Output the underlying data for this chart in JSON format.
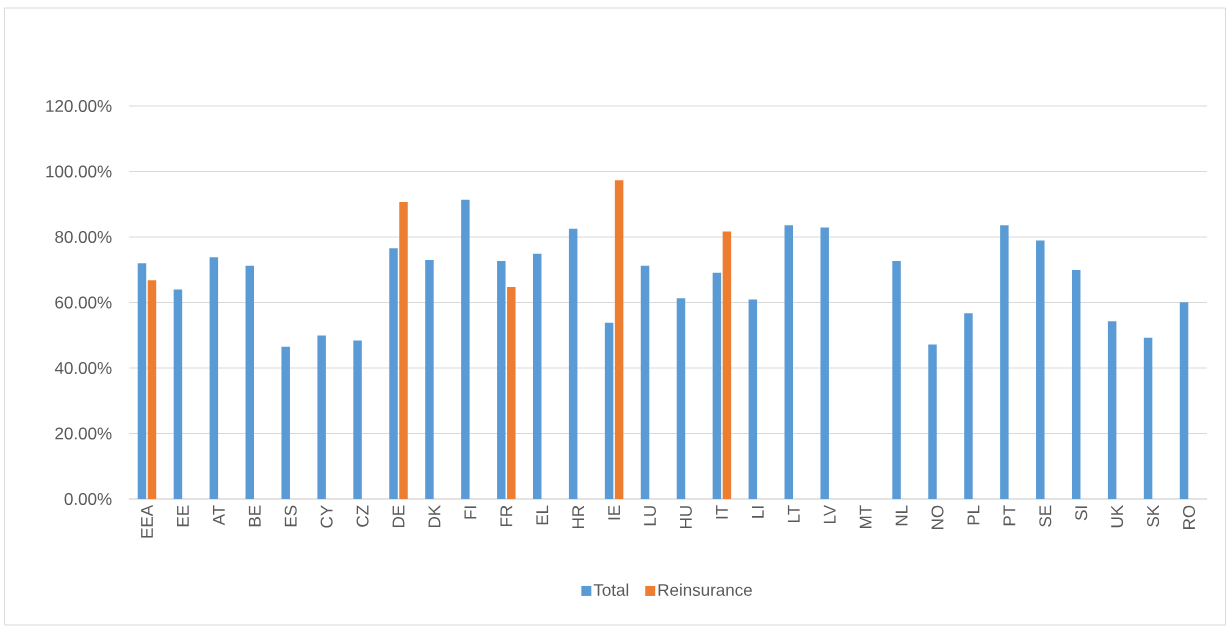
{
  "chart_data": {
    "type": "bar",
    "categories": [
      "EEA",
      "EE",
      "AT",
      "BE",
      "ES",
      "CY",
      "CZ",
      "DE",
      "DK",
      "FI",
      "FR",
      "EL",
      "HR",
      "IE",
      "LU",
      "HU",
      "IT",
      "LI",
      "LT",
      "LV",
      "MT",
      "NL",
      "NO",
      "PL",
      "PT",
      "SE",
      "SI",
      "UK",
      "SK",
      "RO"
    ],
    "series": [
      {
        "name": "Total",
        "color": "#5b9bd5",
        "values": [
          72,
          64,
          73.8,
          71.2,
          46.5,
          49.9,
          48.4,
          76.6,
          73,
          91.4,
          72.7,
          74.9,
          82.5,
          53.8,
          71.2,
          61.3,
          69.1,
          60.9,
          83.6,
          82.9,
          null,
          72.7,
          47.2,
          56.7,
          83.6,
          78.9,
          69.9,
          54.3,
          49.2,
          60.1
        ]
      },
      {
        "name": "Reinsurance",
        "color": "#ed7d31",
        "values": [
          66.8,
          null,
          null,
          null,
          null,
          null,
          null,
          90.7,
          null,
          null,
          64.7,
          null,
          null,
          97.3,
          null,
          null,
          81.7,
          null,
          null,
          null,
          null,
          null,
          null,
          null,
          null,
          null,
          null,
          null,
          null,
          null
        ]
      }
    ],
    "ylim": [
      0,
      120
    ],
    "yticks": [
      {
        "value": 0,
        "label": "0.00%"
      },
      {
        "value": 20,
        "label": "20.00%"
      },
      {
        "value": 40,
        "label": "40.00%"
      },
      {
        "value": 60,
        "label": "60.00%"
      },
      {
        "value": 80,
        "label": "80.00%"
      },
      {
        "value": 100,
        "label": "100.00%"
      },
      {
        "value": 120,
        "label": "120.00%"
      }
    ],
    "grid": "y",
    "legend": "bottom"
  }
}
